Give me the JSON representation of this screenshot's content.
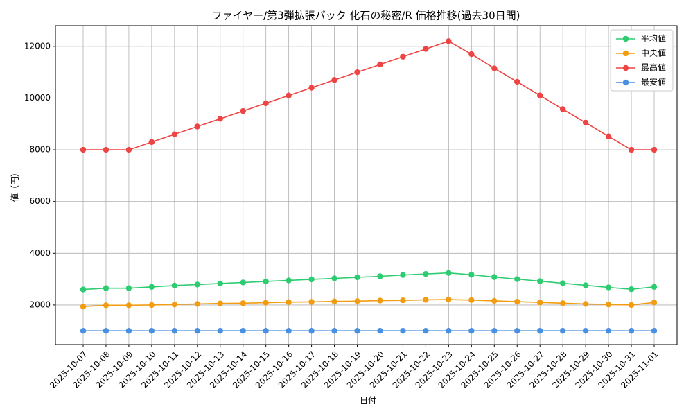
{
  "chart_data": {
    "type": "line",
    "title": "ファイヤー/第3弾拡張パック 化石の秘密/R 価格推移(過去30日間)",
    "x_label": "日付",
    "y_label": "値（円）",
    "categories": [
      "2025-10-07",
      "2025-10-08",
      "2025-10-09",
      "2025-10-10",
      "2025-10-11",
      "2025-10-12",
      "2025-10-13",
      "2025-10-14",
      "2025-10-15",
      "2025-10-16",
      "2025-10-17",
      "2025-10-18",
      "2025-10-19",
      "2025-10-20",
      "2025-10-21",
      "2025-10-22",
      "2025-10-23",
      "2025-10-24",
      "2025-10-25",
      "2025-10-26",
      "2025-10-27",
      "2025-10-28",
      "2025-10-29",
      "2025-10-30",
      "2025-10-31",
      "2025-11-01"
    ],
    "series": [
      {
        "name": "平均値",
        "color": "#2ecc71",
        "values": [
          2600,
          2650,
          2650,
          2700,
          2750,
          2790,
          2830,
          2870,
          2910,
          2950,
          2990,
          3030,
          3070,
          3110,
          3160,
          3200,
          3240,
          3170,
          3080,
          3000,
          2920,
          2840,
          2760,
          2680,
          2610,
          2700
        ]
      },
      {
        "name": "中央値",
        "color": "#f39c12",
        "values": [
          1940,
          1990,
          1990,
          2000,
          2020,
          2040,
          2060,
          2070,
          2090,
          2110,
          2120,
          2140,
          2150,
          2170,
          2180,
          2200,
          2210,
          2190,
          2160,
          2130,
          2100,
          2070,
          2040,
          2020,
          2000,
          2100
        ]
      },
      {
        "name": "最高値",
        "color": "#ef4444",
        "values": [
          8000,
          8000,
          8000,
          8300,
          8600,
          8900,
          9200,
          9500,
          9800,
          10100,
          10400,
          10700,
          11000,
          11300,
          11600,
          11900,
          12200,
          11700,
          11150,
          10630,
          10100,
          9570,
          9050,
          8520,
          8000,
          8000
        ]
      },
      {
        "name": "最安値",
        "color": "#4a90e2",
        "values": [
          1000,
          1000,
          1000,
          1000,
          1000,
          1000,
          1000,
          1000,
          1000,
          1000,
          1000,
          1000,
          1000,
          1000,
          1000,
          1000,
          1000,
          1000,
          1000,
          1000,
          1000,
          1000,
          1000,
          1000,
          1000,
          1000
        ]
      }
    ],
    "ylim": [
      470,
      12800
    ],
    "yticks": [
      2000,
      4000,
      6000,
      8000,
      10000,
      12000
    ],
    "grid": true,
    "legend": "upper right"
  }
}
